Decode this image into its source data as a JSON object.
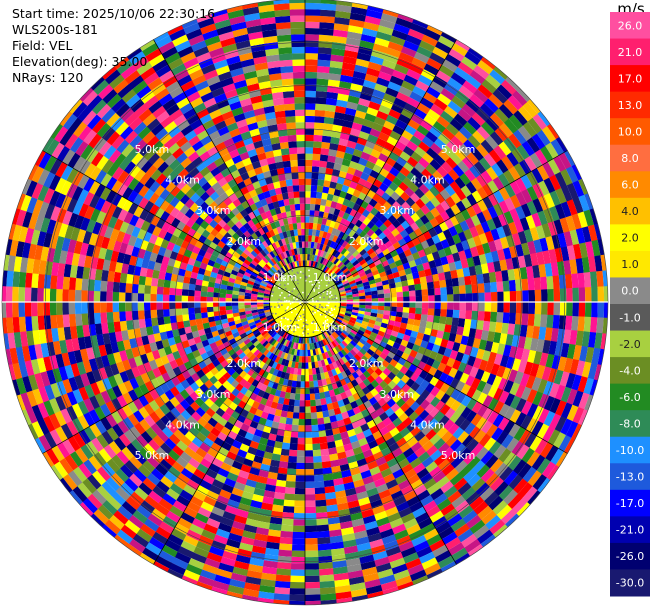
{
  "header": {
    "start_time": "Start time: 2025/10/06 22:30:16",
    "instrument": "WLS200s-181",
    "field": "Field: VEL",
    "elevation": "Elevation(deg): 35.00",
    "nrays": "NRays: 120"
  },
  "colorbar": {
    "unit": "m/s",
    "levels": [
      {
        "label": "26.0",
        "color": "#ff4fa0"
      },
      {
        "label": "21.0",
        "color": "#ff1f6e"
      },
      {
        "label": "17.0",
        "color": "#ff0000"
      },
      {
        "label": "13.0",
        "color": "#ff2a00"
      },
      {
        "label": "10.0",
        "color": "#ff5a00"
      },
      {
        "label": "8.0",
        "color": "#ff6e40"
      },
      {
        "label": "6.0",
        "color": "#ff8a00"
      },
      {
        "label": "4.0",
        "color": "#ffc000"
      },
      {
        "label": "2.0",
        "color": "#ffff00"
      },
      {
        "label": "1.0",
        "color": "#ffe800"
      },
      {
        "label": "0.0",
        "color": "#8a8a8a"
      },
      {
        "label": "-1.0",
        "color": "#5a5a5a"
      },
      {
        "label": "-2.0",
        "color": "#a8d040"
      },
      {
        "label": "-4.0",
        "color": "#6b8e23"
      },
      {
        "label": "-6.0",
        "color": "#228b22"
      },
      {
        "label": "-8.0",
        "color": "#2e8b57"
      },
      {
        "label": "-10.0",
        "color": "#1e90ff"
      },
      {
        "label": "-13.0",
        "color": "#1e5adc"
      },
      {
        "label": "-17.0",
        "color": "#0000ff"
      },
      {
        "label": "-21.0",
        "color": "#0000b0"
      },
      {
        "label": "-26.0",
        "color": "#000070"
      },
      {
        "label": "-30.0",
        "color": "#191970"
      }
    ]
  },
  "chart_data": {
    "type": "heatmap",
    "projection": "polar-ppi",
    "field": "VEL",
    "nrays": 120,
    "max_range_km": 7.0,
    "range_labels": [
      "1.0km",
      "2.0km",
      "3.0km",
      "4.0km",
      "5.0km"
    ],
    "range_ring_km": [
      1.0,
      2.0,
      3.0,
      4.0,
      5.0,
      6.0,
      7.0
    ],
    "inner_region": {
      "range_km": [
        0,
        1.0
      ],
      "azimuth_0_to_180_value_ms": -2.0,
      "azimuth_180_to_360_value_ms": 2.0
    },
    "outer_region_note_values": [
      26.0,
      21.0,
      17.0,
      13.0,
      10.0,
      8.0,
      6.0,
      4.0,
      2.0,
      -1.0,
      -2.0,
      -6.0,
      -8.0,
      -13.0,
      -17.0,
      -21.0,
      -26.0
    ]
  }
}
